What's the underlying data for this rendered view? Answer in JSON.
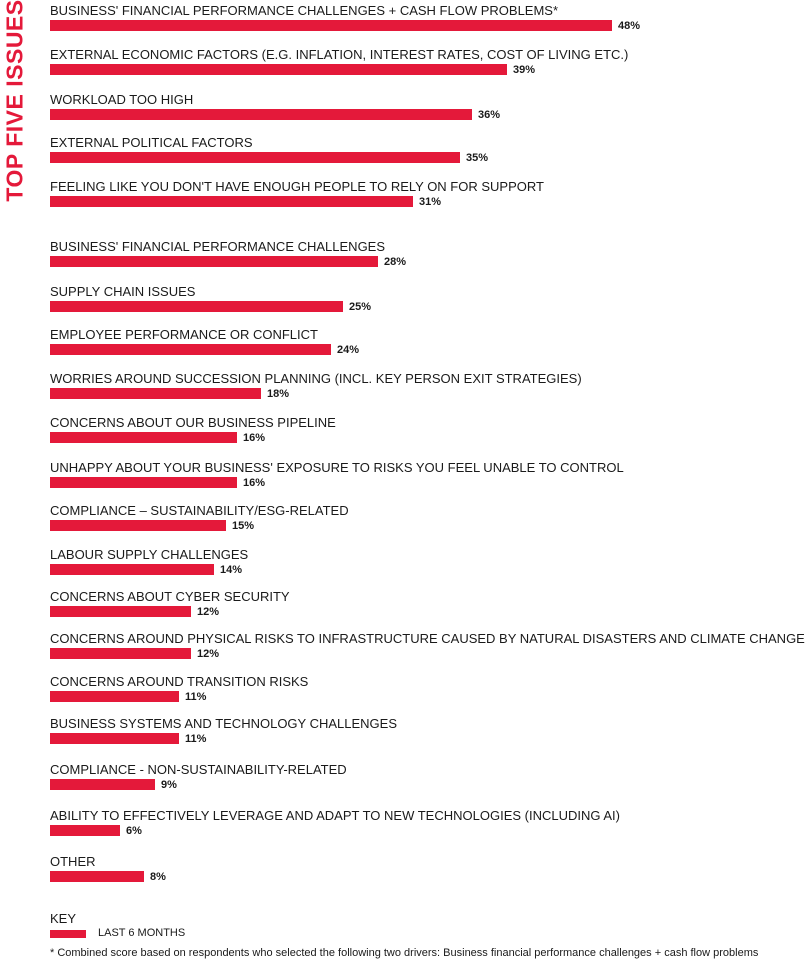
{
  "side_title": "TOP FIVE ISSUES",
  "colors": {
    "bar": "#e4193a",
    "side_title": "#e4193a",
    "text": "#1a1a1a"
  },
  "chart_data": {
    "type": "bar",
    "orientation": "horizontal",
    "title": "",
    "xlabel": "",
    "ylabel": "",
    "xlim": [
      0,
      100
    ],
    "grid": false,
    "legend": "bottom-left",
    "categories": [
      "BUSINESS' FINANCIAL PERFORMANCE CHALLENGES + CASH FLOW PROBLEMS*",
      "EXTERNAL ECONOMIC FACTORS (E.G. INFLATION, INTEREST RATES, COST OF LIVING ETC.)",
      "WORKLOAD TOO HIGH",
      "EXTERNAL POLITICAL FACTORS",
      "FEELING LIKE YOU DON'T HAVE ENOUGH PEOPLE TO RELY ON FOR SUPPORT",
      "BUSINESS' FINANCIAL PERFORMANCE CHALLENGES",
      "SUPPLY CHAIN ISSUES",
      "EMPLOYEE PERFORMANCE OR CONFLICT",
      "WORRIES AROUND SUCCESSION PLANNING (INCL. KEY PERSON EXIT STRATEGIES)",
      "CONCERNS ABOUT OUR BUSINESS PIPELINE",
      "UNHAPPY ABOUT YOUR BUSINESS' EXPOSURE TO RISKS YOU FEEL UNABLE TO CONTROL",
      "COMPLIANCE – SUSTAINABILITY/ESG-RELATED",
      "LABOUR SUPPLY CHALLENGES",
      "CONCERNS ABOUT CYBER SECURITY",
      "CONCERNS AROUND PHYSICAL RISKS TO INFRASTRUCTURE CAUSED BY NATURAL DISASTERS AND CLIMATE CHANGE",
      "CONCERNS AROUND TRANSITION RISKS",
      "BUSINESS SYSTEMS AND TECHNOLOGY CHALLENGES",
      "COMPLIANCE - NON-SUSTAINABILITY-RELATED",
      "ABILITY TO EFFECTIVELY LEVERAGE AND ADAPT TO NEW TECHNOLOGIES (INCLUDING AI)",
      "OTHER"
    ],
    "series": [
      {
        "name": "LAST 6 MONTHS",
        "values": [
          48,
          39,
          36,
          35,
          31,
          28,
          25,
          24,
          18,
          16,
          16,
          15,
          14,
          12,
          12,
          11,
          11,
          9,
          6,
          8
        ],
        "value_labels": [
          "48%",
          "39%",
          "36%",
          "35%",
          "31%",
          "28%",
          "25%",
          "24%",
          "18%",
          "16%",
          "16%",
          "15%",
          "14%",
          "12%",
          "12%",
          "11%",
          "11%",
          "9%",
          "6%",
          "8%"
        ]
      }
    ]
  },
  "key": {
    "title": "KEY",
    "label": "LAST 6 MONTHS"
  },
  "footnote": "* Combined score based on respondents who selected the following two drivers: Business financial performance challenges + cash flow problems"
}
